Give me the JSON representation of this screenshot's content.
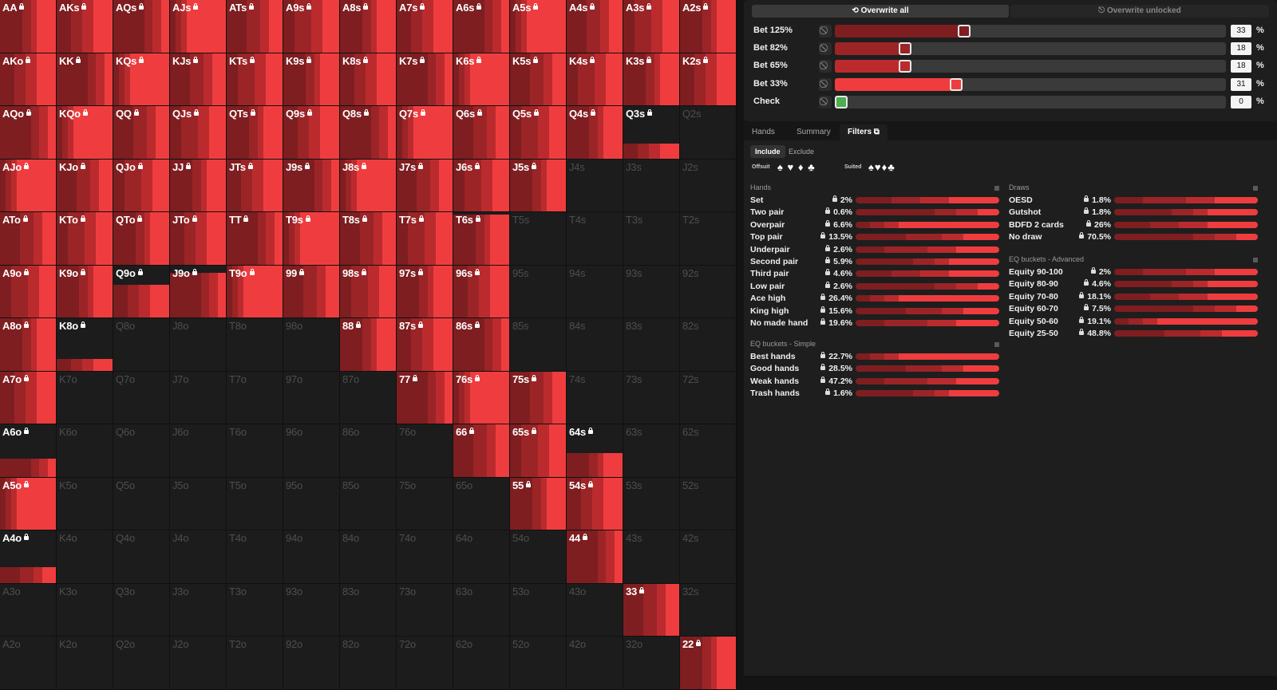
{
  "matrix": [
    [
      "AA",
      "AKs",
      "AQs",
      "AJs",
      "ATs",
      "A9s",
      "A8s",
      "A7s",
      "A6s",
      "A5s",
      "A4s",
      "A3s",
      "A2s"
    ],
    [
      "AKo",
      "KK",
      "KQs",
      "KJs",
      "KTs",
      "K9s",
      "K8s",
      "K7s",
      "K6s",
      "K5s",
      "K4s",
      "K3s",
      "K2s"
    ],
    [
      "AQo",
      "KQo",
      "QQ",
      "QJs",
      "QTs",
      "Q9s",
      "Q8s",
      "Q7s",
      "Q6s",
      "Q5s",
      "Q4s",
      "Q3s",
      "Q2s"
    ],
    [
      "AJo",
      "KJo",
      "QJo",
      "JJ",
      "JTs",
      "J9s",
      "J8s",
      "J7s",
      "J6s",
      "J5s",
      "J4s",
      "J3s",
      "J2s"
    ],
    [
      "ATo",
      "KTo",
      "QTo",
      "JTo",
      "TT",
      "T9s",
      "T8s",
      "T7s",
      "T6s",
      "T5s",
      "T4s",
      "T3s",
      "T2s"
    ],
    [
      "A9o",
      "K9o",
      "Q9o",
      "J9o",
      "T9o",
      "99",
      "98s",
      "97s",
      "96s",
      "95s",
      "94s",
      "93s",
      "92s"
    ],
    [
      "A8o",
      "K8o",
      "Q8o",
      "J8o",
      "T8o",
      "98o",
      "88",
      "87s",
      "86s",
      "85s",
      "84s",
      "83s",
      "82s"
    ],
    [
      "A7o",
      "K7o",
      "Q7o",
      "J7o",
      "T7o",
      "97o",
      "87o",
      "77",
      "76s",
      "75s",
      "74s",
      "73s",
      "72s"
    ],
    [
      "A6o",
      "K6o",
      "Q6o",
      "J6o",
      "T6o",
      "96o",
      "86o",
      "76o",
      "66",
      "65s",
      "64s",
      "63s",
      "62s"
    ],
    [
      "A5o",
      "K5o",
      "Q5o",
      "J5o",
      "T5o",
      "95o",
      "85o",
      "75o",
      "65o",
      "55",
      "54s",
      "53s",
      "52s"
    ],
    [
      "A4o",
      "K4o",
      "Q4o",
      "J4o",
      "T4o",
      "94o",
      "84o",
      "74o",
      "64o",
      "54o",
      "44",
      "43s",
      "42s"
    ],
    [
      "A3o",
      "K3o",
      "Q3o",
      "J3o",
      "T3o",
      "93o",
      "83o",
      "73o",
      "63o",
      "53o",
      "43o",
      "33",
      "32s"
    ],
    [
      "A2o",
      "K2o",
      "Q2o",
      "J2o",
      "T2o",
      "92o",
      "82o",
      "72o",
      "62o",
      "52o",
      "42o",
      "32o",
      "22"
    ]
  ],
  "matrix_fill": [
    [
      1,
      1,
      1,
      1,
      1,
      1,
      1,
      1,
      1,
      1,
      1,
      1,
      1
    ],
    [
      1,
      1,
      1,
      1,
      1,
      1,
      1,
      1,
      1,
      1,
      1,
      1,
      1
    ],
    [
      1,
      1,
      1,
      1,
      1,
      1,
      1,
      1,
      1,
      1,
      1,
      0.28,
      0
    ],
    [
      1,
      1,
      1,
      1,
      1,
      1,
      1,
      1,
      1,
      1,
      0,
      0,
      0
    ],
    [
      1,
      1,
      1,
      1,
      1,
      1,
      1,
      1,
      0.95,
      0,
      0,
      0,
      0
    ],
    [
      1,
      1,
      0.62,
      0.85,
      1,
      1,
      1,
      1,
      1,
      0,
      0,
      0,
      0
    ],
    [
      1,
      0.22,
      0,
      0,
      0,
      0,
      1,
      1,
      1,
      0,
      0,
      0,
      0
    ],
    [
      1,
      0,
      0,
      0,
      0,
      0,
      0,
      1,
      1,
      1,
      0,
      0,
      0
    ],
    [
      0.35,
      0,
      0,
      0,
      0,
      0,
      0,
      0,
      1,
      1,
      0.45,
      0,
      0
    ],
    [
      1,
      0,
      0,
      0,
      0,
      0,
      0,
      0,
      0,
      1,
      1,
      0,
      0
    ],
    [
      0.3,
      0,
      0,
      0,
      0,
      0,
      0,
      0,
      0,
      0,
      1,
      0,
      0
    ],
    [
      0,
      0,
      0,
      0,
      0,
      0,
      0,
      0,
      0,
      0,
      0,
      1,
      0
    ],
    [
      0,
      0,
      0,
      0,
      0,
      0,
      0,
      0,
      0,
      0,
      0,
      0,
      1
    ]
  ],
  "colors": {
    "bet125": "#7e1e20",
    "bet82": "#9b2427",
    "bet65": "#bb2b2e",
    "bet33": "#ef3d3f",
    "check": "#4caf50"
  },
  "toolbar": {
    "overwrite_all": "⟲ Overwrite all",
    "overwrite_unlocked": "⎋ Overwrite unlocked"
  },
  "actions": [
    {
      "label": "Bet 125%",
      "value": "33",
      "fraction": 0.33,
      "color": "#7e1e20"
    },
    {
      "label": "Bet 82%",
      "value": "18",
      "fraction": 0.18,
      "color": "#9b2427"
    },
    {
      "label": "Bet 65%",
      "value": "18",
      "fraction": 0.18,
      "color": "#bb2b2e"
    },
    {
      "label": "Bet 33%",
      "value": "31",
      "fraction": 0.31,
      "color": "#ef3d3f"
    },
    {
      "label": "Check",
      "value": "0",
      "fraction": 0,
      "color": "#4caf50"
    }
  ],
  "pct_sign": "%",
  "ban_icon": "⃠",
  "tabs": {
    "hands": "Hands",
    "summary": "Summary",
    "filters": "Filters ⧉"
  },
  "filters": {
    "include": "Include",
    "exclude": "Exclude",
    "offsuit": "Offsuit",
    "suited": "Suited",
    "offsuit_suits": "♠ ♥ ♦ ♣",
    "suited_suits": "♠♥♦♣"
  },
  "hands_section": {
    "title": "Hands",
    "rows": [
      {
        "name": "Set",
        "pct": "2%"
      },
      {
        "name": "Two pair",
        "pct": "0.6%"
      },
      {
        "name": "Overpair",
        "pct": "6.6%"
      },
      {
        "name": "Top pair",
        "pct": "13.5%"
      },
      {
        "name": "Underpair",
        "pct": "2.6%"
      },
      {
        "name": "Second pair",
        "pct": "5.9%"
      },
      {
        "name": "Third pair",
        "pct": "4.6%"
      },
      {
        "name": "Low pair",
        "pct": "2.6%"
      },
      {
        "name": "Ace high",
        "pct": "26.4%"
      },
      {
        "name": "King high",
        "pct": "15.6%"
      },
      {
        "name": "No made hand",
        "pct": "19.6%"
      }
    ]
  },
  "eq_simple": {
    "title": "EQ buckets - Simple",
    "rows": [
      {
        "name": "Best hands",
        "pct": "22.7%"
      },
      {
        "name": "Good hands",
        "pct": "28.5%"
      },
      {
        "name": "Weak hands",
        "pct": "47.2%"
      },
      {
        "name": "Trash hands",
        "pct": "1.6%"
      }
    ]
  },
  "draws": {
    "title": "Draws",
    "rows": [
      {
        "name": "OESD",
        "pct": "1.8%"
      },
      {
        "name": "Gutshot",
        "pct": "1.8%"
      },
      {
        "name": "BDFD 2 cards",
        "pct": "26%"
      },
      {
        "name": "No draw",
        "pct": "70.5%"
      }
    ]
  },
  "eq_advanced": {
    "title": "EQ buckets - Advanced",
    "rows": [
      {
        "name": "Equity 90-100",
        "pct": "2%"
      },
      {
        "name": "Equity 80-90",
        "pct": "4.6%"
      },
      {
        "name": "Equity 70-80",
        "pct": "18.1%"
      },
      {
        "name": "Equity 60-70",
        "pct": "7.5%"
      },
      {
        "name": "Equity 50-60",
        "pct": "19.1%"
      },
      {
        "name": "Equity 25-50",
        "pct": "48.8%"
      }
    ]
  }
}
